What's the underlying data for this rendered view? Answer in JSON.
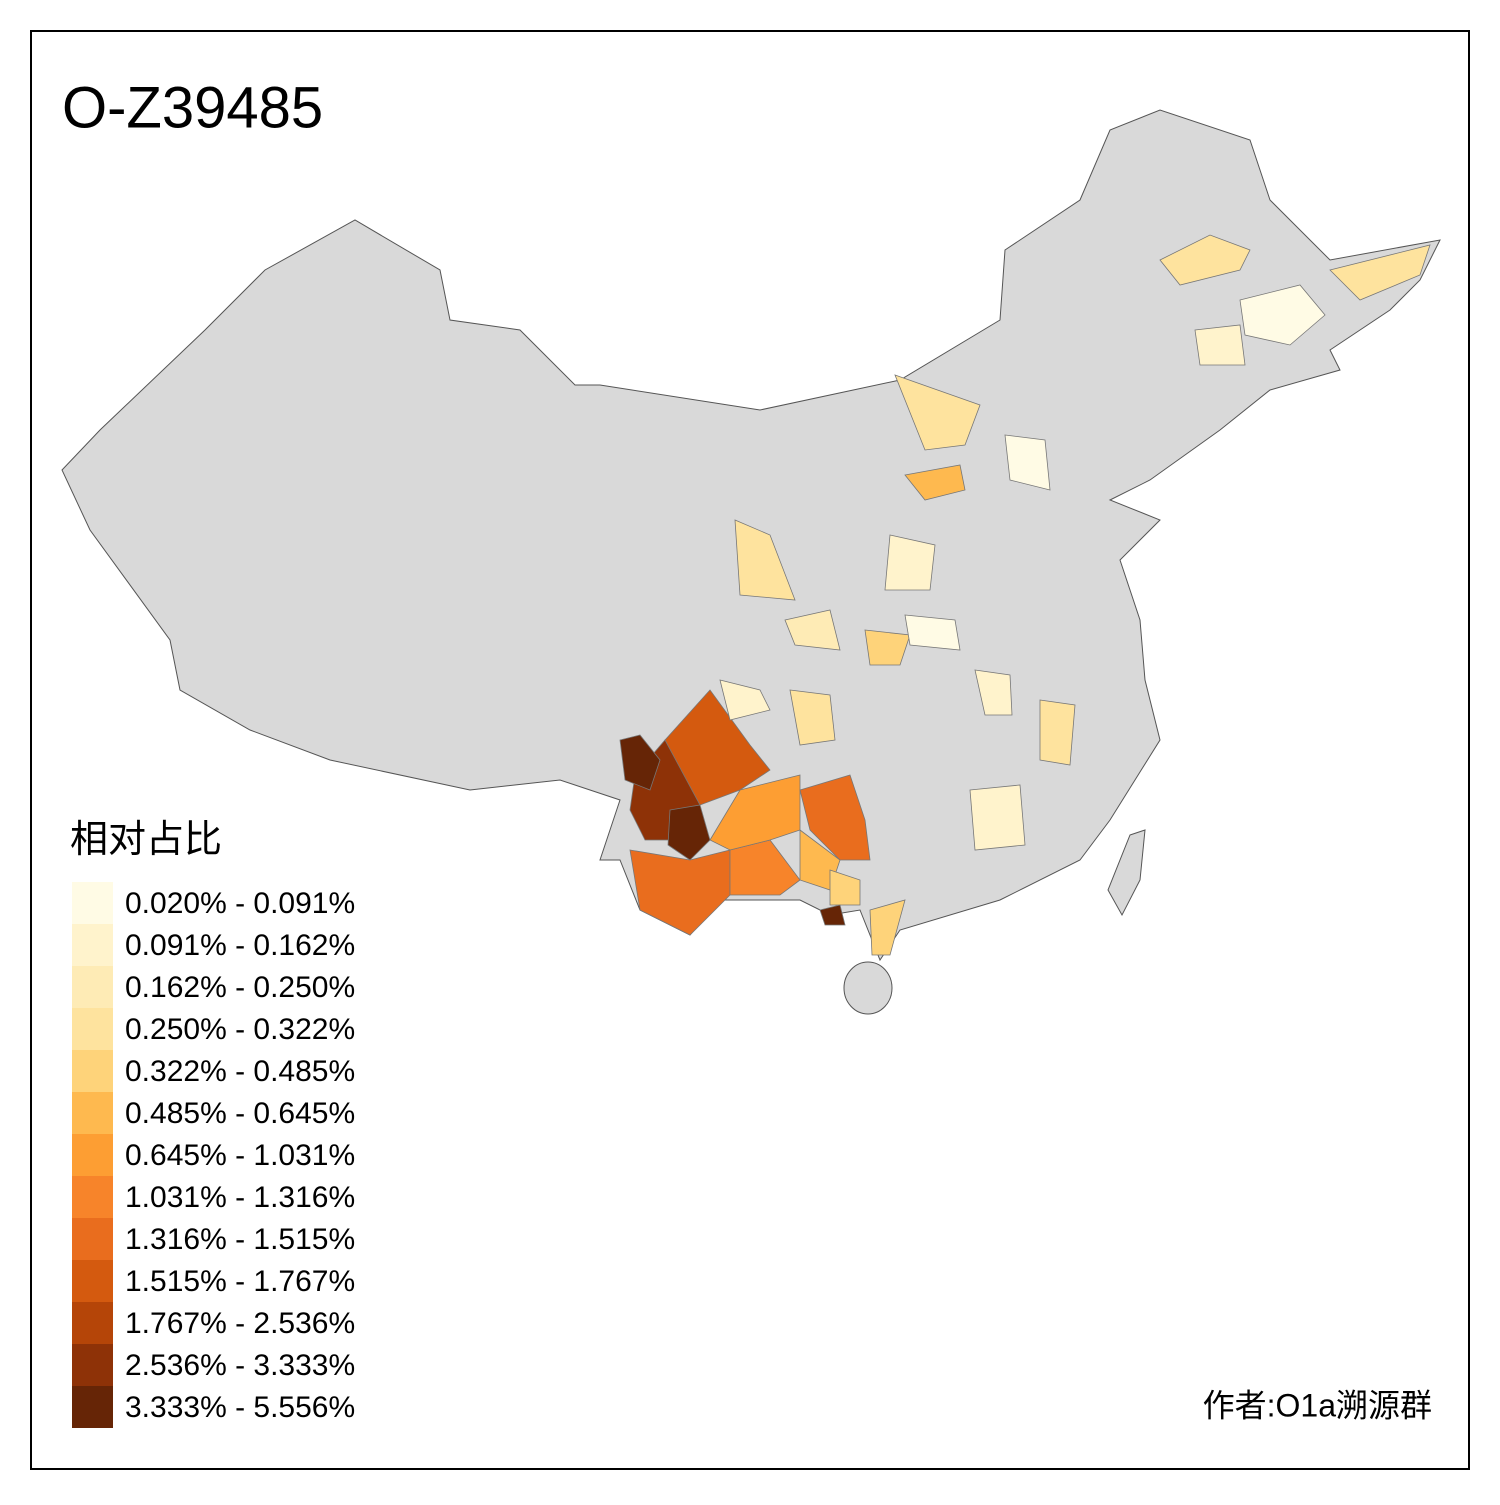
{
  "title": "O-Z39485",
  "legend": {
    "title": "相对占比",
    "items": [
      {
        "label": "0.020% - 0.091%",
        "color": "#fffbe5"
      },
      {
        "label": "0.091% - 0.162%",
        "color": "#fff3cc"
      },
      {
        "label": "0.162% - 0.250%",
        "color": "#feebb5"
      },
      {
        "label": "0.250% - 0.322%",
        "color": "#fee39e"
      },
      {
        "label": "0.322% - 0.485%",
        "color": "#fed37a"
      },
      {
        "label": "0.485% - 0.645%",
        "color": "#feb94f"
      },
      {
        "label": "0.645% - 1.031%",
        "color": "#fd9e33"
      },
      {
        "label": "1.031% - 1.316%",
        "color": "#f7842a"
      },
      {
        "label": "1.316% - 1.515%",
        "color": "#e96d1e"
      },
      {
        "label": "1.515% - 1.767%",
        "color": "#d45a0f"
      },
      {
        "label": "1.767% - 2.536%",
        "color": "#b54508"
      },
      {
        "label": "2.536% - 3.333%",
        "color": "#8e3207"
      },
      {
        "label": "3.333% - 5.556%",
        "color": "#662506"
      }
    ]
  },
  "author": "作者:O1a溯源群"
}
